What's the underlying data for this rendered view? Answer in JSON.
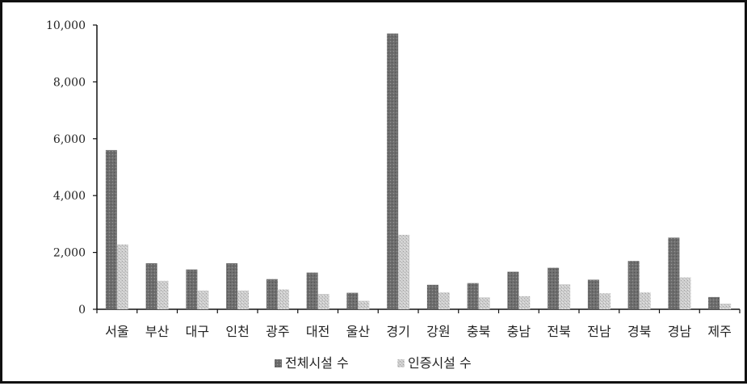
{
  "chart_data": {
    "type": "bar",
    "title": "",
    "xlabel": "",
    "ylabel": "",
    "ylim": [
      0,
      10000
    ],
    "yticks": [
      0,
      2000,
      4000,
      6000,
      8000,
      10000
    ],
    "ytick_labels": [
      "0",
      "2,000",
      "4,000",
      "6,000",
      "8,000",
      "10,000"
    ],
    "categories": [
      "서울",
      "부산",
      "대구",
      "인천",
      "광주",
      "대전",
      "울산",
      "경기",
      "강원",
      "충북",
      "충남",
      "전북",
      "전남",
      "경북",
      "경남",
      "제주"
    ],
    "series": [
      {
        "name": "전체시설 수",
        "color": "#6b6b6b",
        "values": [
          5600,
          1620,
          1400,
          1620,
          1060,
          1290,
          580,
          9700,
          860,
          920,
          1320,
          1460,
          1040,
          1700,
          2520,
          430
        ]
      },
      {
        "name": "인증시설 수",
        "color": "#c8c8c8",
        "values": [
          2280,
          1000,
          660,
          660,
          700,
          540,
          300,
          2620,
          600,
          420,
          460,
          880,
          560,
          600,
          1120,
          200
        ]
      }
    ],
    "legend_position": "bottom",
    "grid": false
  }
}
